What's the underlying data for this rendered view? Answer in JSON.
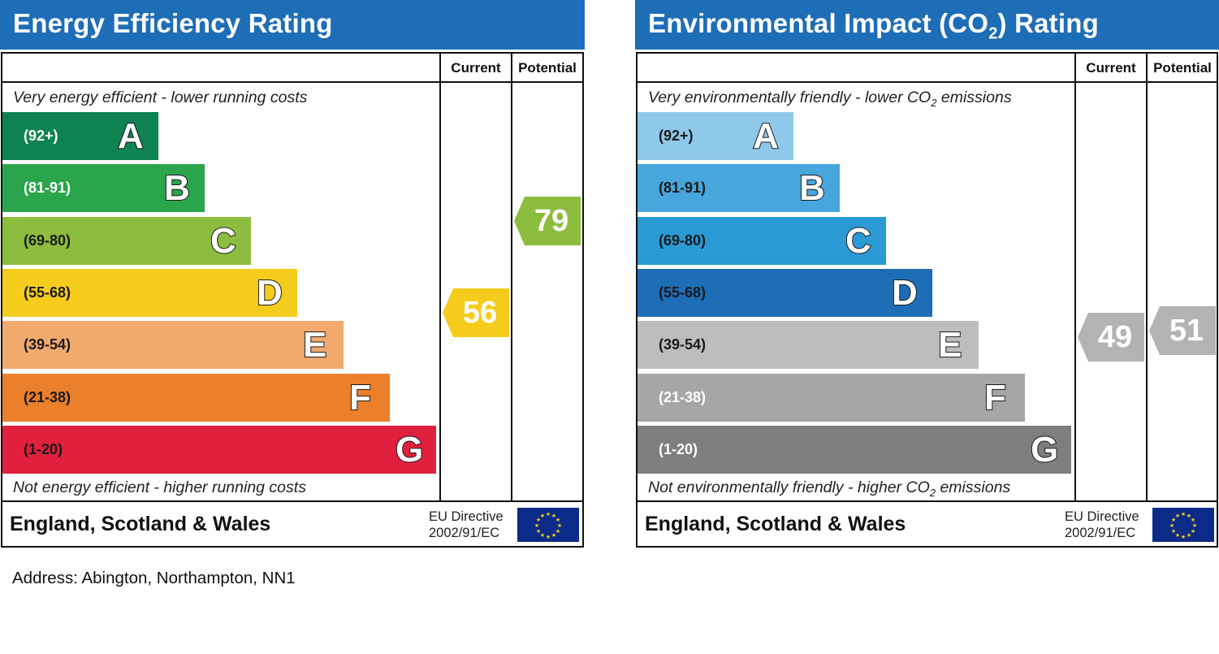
{
  "address": "Address: Abington, Northampton, NN1",
  "chart_data": [
    {
      "type": "bar",
      "title": "Energy Efficiency Rating",
      "column_headers": [
        "Current",
        "Potential"
      ],
      "top_caption": "Very energy efficient - lower running costs",
      "bottom_caption": "Not energy efficient - higher running costs",
      "region": "England, Scotland & Wales",
      "directive": [
        "EU Directive",
        "2002/91/EC"
      ],
      "categories": [
        "A",
        "B",
        "C",
        "D",
        "E",
        "F",
        "G"
      ],
      "ranges": [
        "(92+)",
        "(81-91)",
        "(69-80)",
        "(55-68)",
        "(39-54)",
        "(21-38)",
        "(1-20)"
      ],
      "band_colors": [
        "#0e8250",
        "#2aa54b",
        "#8cbd3f",
        "#f5cc1c",
        "#f1a96e",
        "#eb7f2a",
        "#e0203c"
      ],
      "range_text_colors": [
        "#ffffff",
        "#ffffff",
        "#1a1a1a",
        "#1a1a1a",
        "#1a1a1a",
        "#1a1a1a",
        "#1a1a1a"
      ],
      "current": {
        "value": 56,
        "band": "D",
        "color": "#f5cc1c"
      },
      "potential": {
        "value": 79,
        "band": "C",
        "color": "#8cbd3f"
      }
    },
    {
      "type": "bar",
      "title": "Environmental Impact (CO",
      "title_subscript": "2",
      "title_suffix": ") Rating",
      "column_headers": [
        "Current",
        "Potential"
      ],
      "top_caption": "Very environmentally friendly - lower CO",
      "top_caption_subscript": "2",
      "top_caption_suffix": " emissions",
      "bottom_caption": "Not environmentally friendly - higher CO",
      "bottom_caption_subscript": "2",
      "bottom_caption_suffix": " emissions",
      "region": "England, Scotland & Wales",
      "directive": [
        "EU Directive",
        "2002/91/EC"
      ],
      "categories": [
        "A",
        "B",
        "C",
        "D",
        "E",
        "F",
        "G"
      ],
      "ranges": [
        "(92+)",
        "(81-91)",
        "(69-80)",
        "(55-68)",
        "(39-54)",
        "(21-38)",
        "(1-20)"
      ],
      "band_colors": [
        "#8ec8ea",
        "#47a6dc",
        "#2a9ad4",
        "#1e6db7",
        "#bdbdbd",
        "#a6a6a6",
        "#7e7e7e"
      ],
      "range_text_colors": [
        "#1a1a1a",
        "#1a1a1a",
        "#1a1a1a",
        "#1a1a1a",
        "#1a1a1a",
        "#ffffff",
        "#ffffff"
      ],
      "current": {
        "value": 49,
        "band": "E",
        "color": "#b3b3b3"
      },
      "potential": {
        "value": 51,
        "band": "E",
        "color": "#b3b3b3"
      }
    }
  ]
}
